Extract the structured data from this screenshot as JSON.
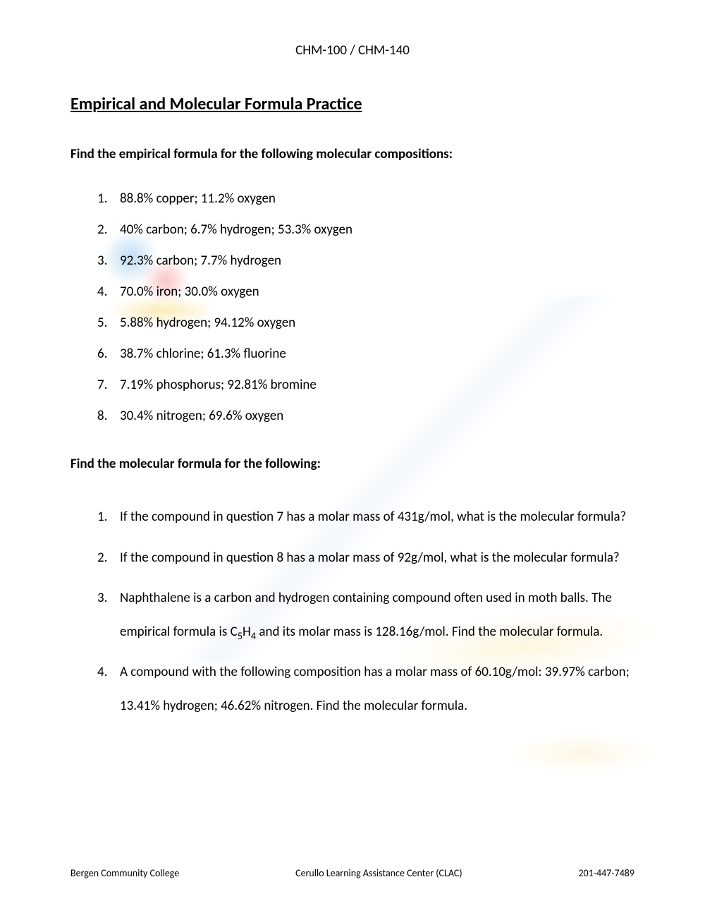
{
  "header": "CHM-100 / CHM-140",
  "title": "Empirical and Molecular Formula Practice",
  "section1": {
    "heading": "Find the empirical formula for the following molecular compositions:",
    "items": [
      "88.8% copper; 11.2% oxygen",
      "40% carbon; 6.7% hydrogen; 53.3% oxygen",
      "92.3% carbon; 7.7% hydrogen",
      "70.0% iron; 30.0% oxygen",
      "5.88% hydrogen; 94.12% oxygen",
      "38.7% chlorine; 61.3% fluorine",
      "7.19% phosphorus; 92.81% bromine",
      "30.4% nitrogen; 69.6% oxygen"
    ]
  },
  "section2": {
    "heading": "Find the molecular formula for the following:",
    "items": [
      {
        "text": "If the compound in question 7 has a molar mass of 431g/mol, what is the molecular formula?"
      },
      {
        "text": "If the compound in question 8 has a molar mass of 92g/mol, what is the molecular formula?"
      },
      {
        "pre": "Naphthalene is a carbon and hydrogen containing compound often used in moth balls. The empirical formula is C",
        "sub1": "5",
        "mid": "H",
        "sub2": "4",
        "post": " and its molar mass is 128.16g/mol. Find the molecular formula."
      },
      {
        "text": "A compound with the following composition has a molar mass of 60.10g/mol:   39.97% carbon; 13.41% hydrogen; 46.62% nitrogen.  Find the molecular formula."
      }
    ]
  },
  "footer": {
    "left": "Bergen Community College",
    "center": "Cerullo Learning Assistance Center (CLAC)",
    "right": "201-447-7489"
  },
  "numbers": [
    "1.",
    "2.",
    "3.",
    "4.",
    "5.",
    "6.",
    "7.",
    "8."
  ]
}
